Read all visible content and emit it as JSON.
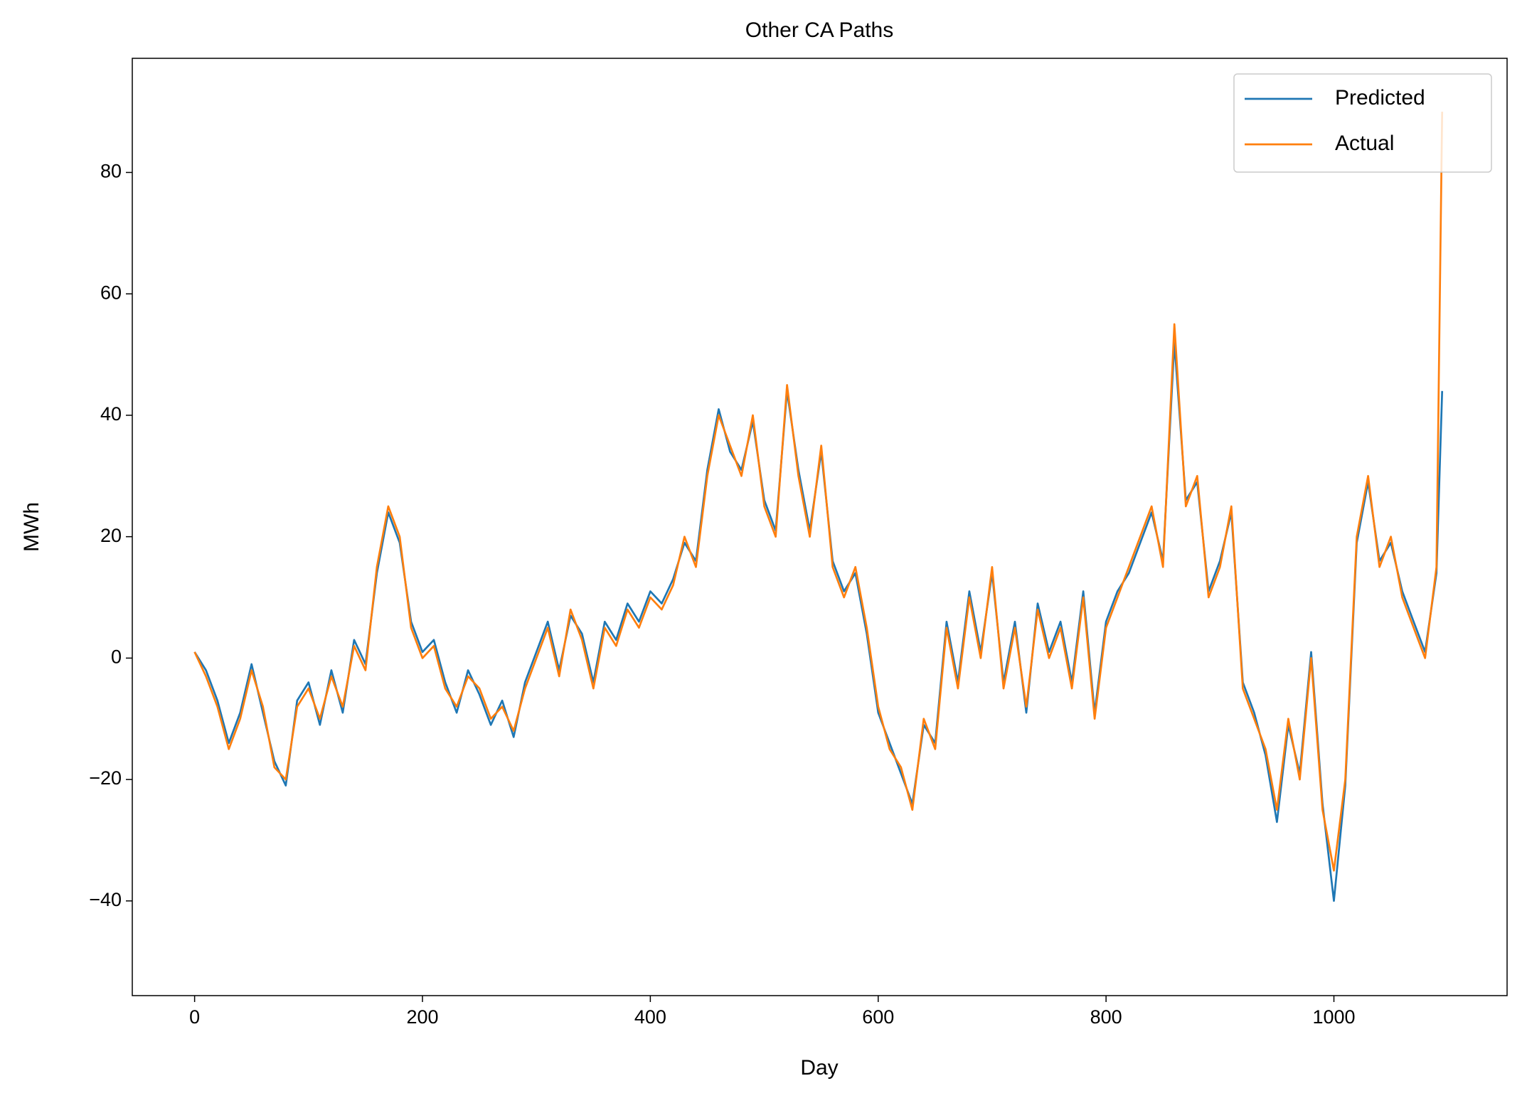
{
  "chart_data": {
    "type": "line",
    "title": "Other CA Paths",
    "x_label": "Day",
    "y_label": "MWh",
    "x": [
      0,
      10,
      20,
      30,
      40,
      50,
      60,
      70,
      80,
      90,
      100,
      110,
      120,
      130,
      140,
      150,
      160,
      170,
      180,
      190,
      200,
      210,
      220,
      230,
      240,
      250,
      260,
      270,
      280,
      290,
      300,
      310,
      320,
      330,
      340,
      350,
      360,
      370,
      380,
      390,
      400,
      410,
      420,
      430,
      440,
      450,
      460,
      470,
      480,
      490,
      500,
      510,
      520,
      530,
      540,
      550,
      560,
      570,
      580,
      590,
      600,
      610,
      620,
      630,
      640,
      650,
      660,
      670,
      680,
      690,
      700,
      710,
      720,
      730,
      740,
      750,
      760,
      770,
      780,
      790,
      800,
      810,
      820,
      830,
      840,
      850,
      860,
      870,
      880,
      890,
      900,
      910,
      920,
      930,
      940,
      950,
      960,
      970,
      980,
      990,
      1000,
      1010,
      1020,
      1030,
      1040,
      1050,
      1060,
      1070,
      1080,
      1090,
      1095
    ],
    "series": [
      {
        "name": "Predicted",
        "color": "#1f77b4",
        "values": [
          1,
          -2,
          -7,
          -14,
          -9,
          -1,
          -9,
          -17,
          -21,
          -7,
          -4,
          -11,
          -2,
          -9,
          3,
          -1,
          14,
          24,
          19,
          6,
          1,
          3,
          -4,
          -9,
          -2,
          -6,
          -11,
          -7,
          -13,
          -4,
          1,
          6,
          -2,
          7,
          4,
          -4,
          6,
          3,
          9,
          6,
          11,
          9,
          13,
          19,
          16,
          31,
          41,
          34,
          31,
          39,
          26,
          21,
          44,
          31,
          21,
          34,
          16,
          11,
          14,
          4,
          -9,
          -14,
          -19,
          -24,
          -11,
          -14,
          6,
          -4,
          11,
          1,
          14,
          -4,
          6,
          -9,
          9,
          1,
          6,
          -4,
          11,
          -9,
          6,
          11,
          14,
          19,
          24,
          16,
          52,
          26,
          29,
          11,
          16,
          24,
          -4,
          -9,
          -16,
          -27,
          -11,
          -19,
          1,
          -24,
          -40,
          -21,
          19,
          29,
          16,
          19,
          11,
          6,
          1,
          14,
          44
        ]
      },
      {
        "name": "Actual",
        "color": "#ff7f0e",
        "values": [
          1,
          -3,
          -8,
          -15,
          -10,
          -2,
          -8,
          -18,
          -20,
          -8,
          -5,
          -10,
          -3,
          -8,
          2,
          -2,
          15,
          25,
          20,
          5,
          0,
          2,
          -5,
          -8,
          -3,
          -5,
          -10,
          -8,
          -12,
          -5,
          0,
          5,
          -3,
          8,
          3,
          -5,
          5,
          2,
          8,
          5,
          10,
          8,
          12,
          20,
          15,
          30,
          40,
          35,
          30,
          40,
          25,
          20,
          45,
          30,
          20,
          35,
          15,
          10,
          15,
          5,
          -8,
          -15,
          -18,
          -25,
          -10,
          -15,
          5,
          -5,
          10,
          0,
          15,
          -5,
          5,
          -8,
          8,
          0,
          5,
          -5,
          10,
          -10,
          5,
          10,
          15,
          20,
          25,
          15,
          55,
          25,
          30,
          10,
          15,
          25,
          -5,
          -10,
          -15,
          -25,
          -10,
          -20,
          0,
          -25,
          -35,
          -20,
          20,
          30,
          15,
          20,
          10,
          5,
          0,
          15,
          90
        ]
      }
    ],
    "xlim": [
      -54.7,
      1152
    ],
    "ylim": [
      -55.6,
      98.8
    ],
    "xticks": [
      0,
      200,
      400,
      600,
      800,
      1000
    ],
    "yticks": [
      {
        "value": -40,
        "label": "−40"
      },
      {
        "value": -20,
        "label": "−20"
      },
      0,
      20,
      40,
      60,
      80
    ],
    "legend": "upper right"
  }
}
